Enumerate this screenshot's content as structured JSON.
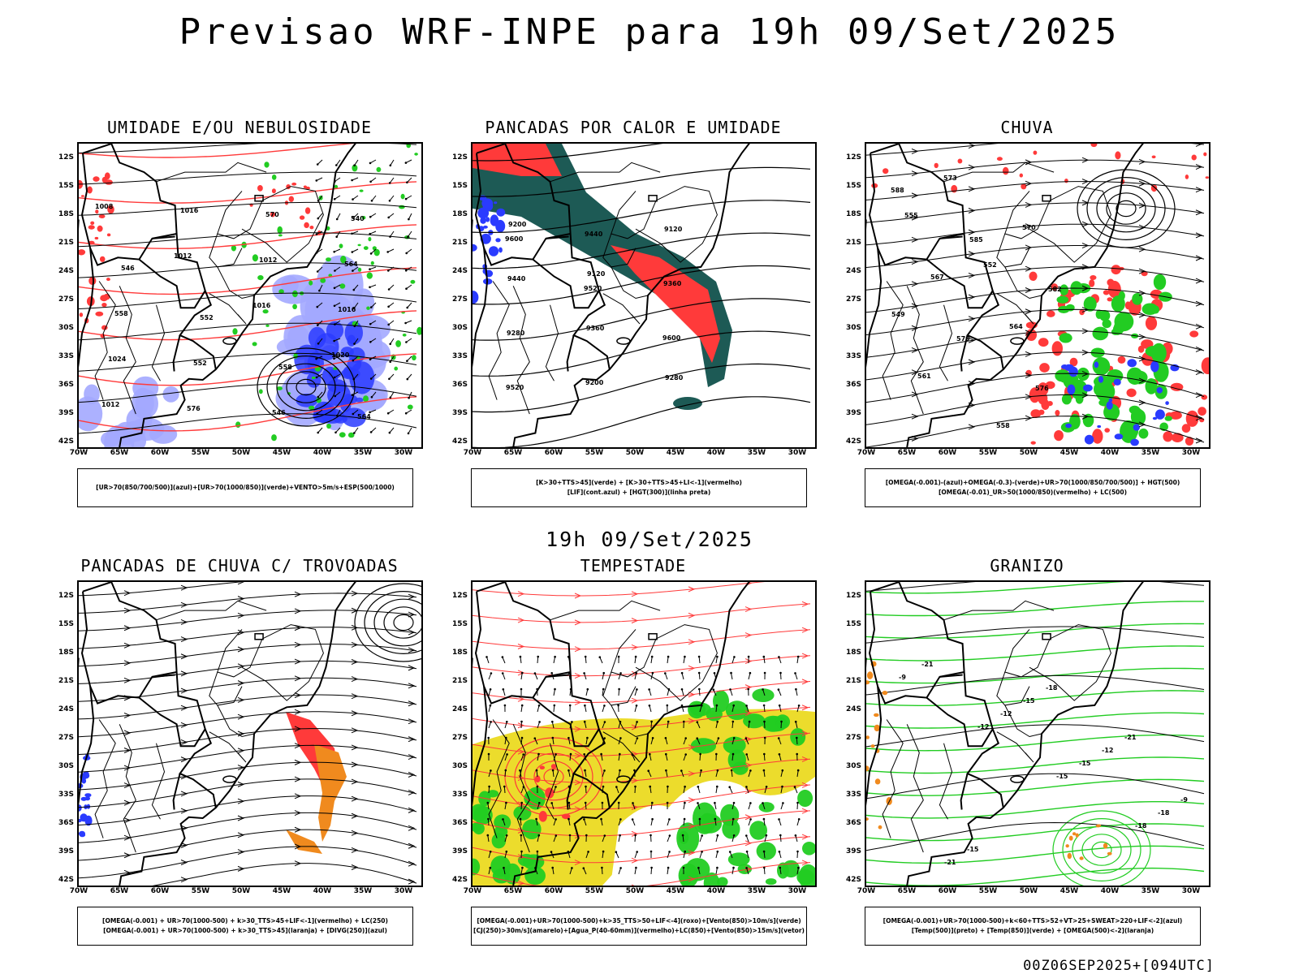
{
  "title": "Previsao WRF-INPE  para 19h 09/Set/2025",
  "mid_title": "19h 09/Set/2025",
  "footer": "00Z06SEP2025+[094UTC]",
  "axes": {
    "lat_ticks": [
      "12S",
      "15S",
      "18S",
      "21S",
      "24S",
      "27S",
      "30S",
      "33S",
      "36S",
      "39S",
      "42S"
    ],
    "lon_ticks": [
      "70W",
      "65W",
      "60W",
      "55W",
      "50W",
      "45W",
      "40W",
      "35W",
      "30W"
    ]
  },
  "colors": {
    "blue": "#2a3bff",
    "light_blue": "#a3a9ff",
    "green": "#22cc22",
    "red": "#ff3a3a",
    "dark_teal": "#1d5a55",
    "orange": "#f08a1e",
    "yellow": "#ecdc2c"
  },
  "panels": [
    {
      "id": "umidade",
      "title": "UMIDADE E/OU NEBULOSIDADE",
      "legend": [
        "[UR>70(850/700/500)](azul)+[UR>70(1000/850)](verde)+VENTO>5m/s+ESP(500/1000)"
      ],
      "contour_labels": [
        "1008",
        "1012",
        "1016",
        "1020",
        "1012",
        "1016",
        "1012",
        "1016",
        "1024",
        "576",
        "570",
        "564",
        "558",
        "552",
        "546",
        "540",
        "546",
        "552",
        "558",
        "564"
      ]
    },
    {
      "id": "pancadas_calor",
      "title": "PANCADAS POR CALOR E UMIDADE",
      "legend": [
        "[K>30+TTS>45](verde) + [K>30+TTS>45+LI<-1](vermelho)",
        "[LIF](cont.azul) + [HGT(300)](linha preta)"
      ],
      "contour_labels": [
        "9600",
        "9520",
        "9600",
        "9520",
        "9440",
        "9360",
        "9280",
        "9200",
        "9120",
        "9440",
        "9360",
        "9280",
        "9200",
        "9120"
      ]
    },
    {
      "id": "chuva",
      "title": "CHUVA",
      "legend": [
        "[OMEGA(-0.001)-(azul)+OMEGA(-0.3)-(verde)+UR>70(1000/850/700/500)] + HGT(500)",
        "[OMEGA(-0.01)_UR>50(1000/850)(vermelho) + LC(500)"
      ],
      "contour_labels": [
        "588",
        "585",
        "582",
        "579",
        "576",
        "573",
        "570",
        "567",
        "564",
        "561",
        "558",
        "555",
        "552",
        "549"
      ]
    },
    {
      "id": "trovoadas",
      "title": "PANCADAS DE CHUVA C/ TROVOADAS",
      "legend": [
        "[OMEGA(-0.001) + UR>70(1000-500) + k>30_TTS>45+LIF<-1](vermelho) + LC(250)",
        "[OMEGA(-0.001) + UR>70(1000-500) + k>30_TTS>45](laranja) + [DIVG(250)](azul)"
      ]
    },
    {
      "id": "tempestade",
      "title": "TEMPESTADE",
      "legend": [
        "[OMEGA(-0.001)+UR>70(1000-500)+k>35_TTS>50+LIF<-4](roxo)+[Vento(850)>10m/s](verde)",
        "[CJ(250)>30m/s](amarelo)+[Agua_P(40-60mm)](vermelho)+LC(850)+[Vento(850)>15m/s](vetor)"
      ]
    },
    {
      "id": "granizo",
      "title": "GRANIZO",
      "legend": [
        "[OMEGA(-0.001)+UR>70(1000-500)+k<60+TTS>52+VT>25+SWEAT>220+LIF<-2](azul)",
        "[Temp(500)](preto) + [Temp(850)](verde) + [OMEGA(500)<-2](laranja)"
      ],
      "contour_labels": [
        "-9",
        "-12",
        "-15",
        "-18",
        "-21",
        "-12",
        "-15",
        "-18",
        "-21",
        "-15",
        "-12",
        "-9",
        "-15",
        "-18",
        "-21"
      ]
    }
  ]
}
